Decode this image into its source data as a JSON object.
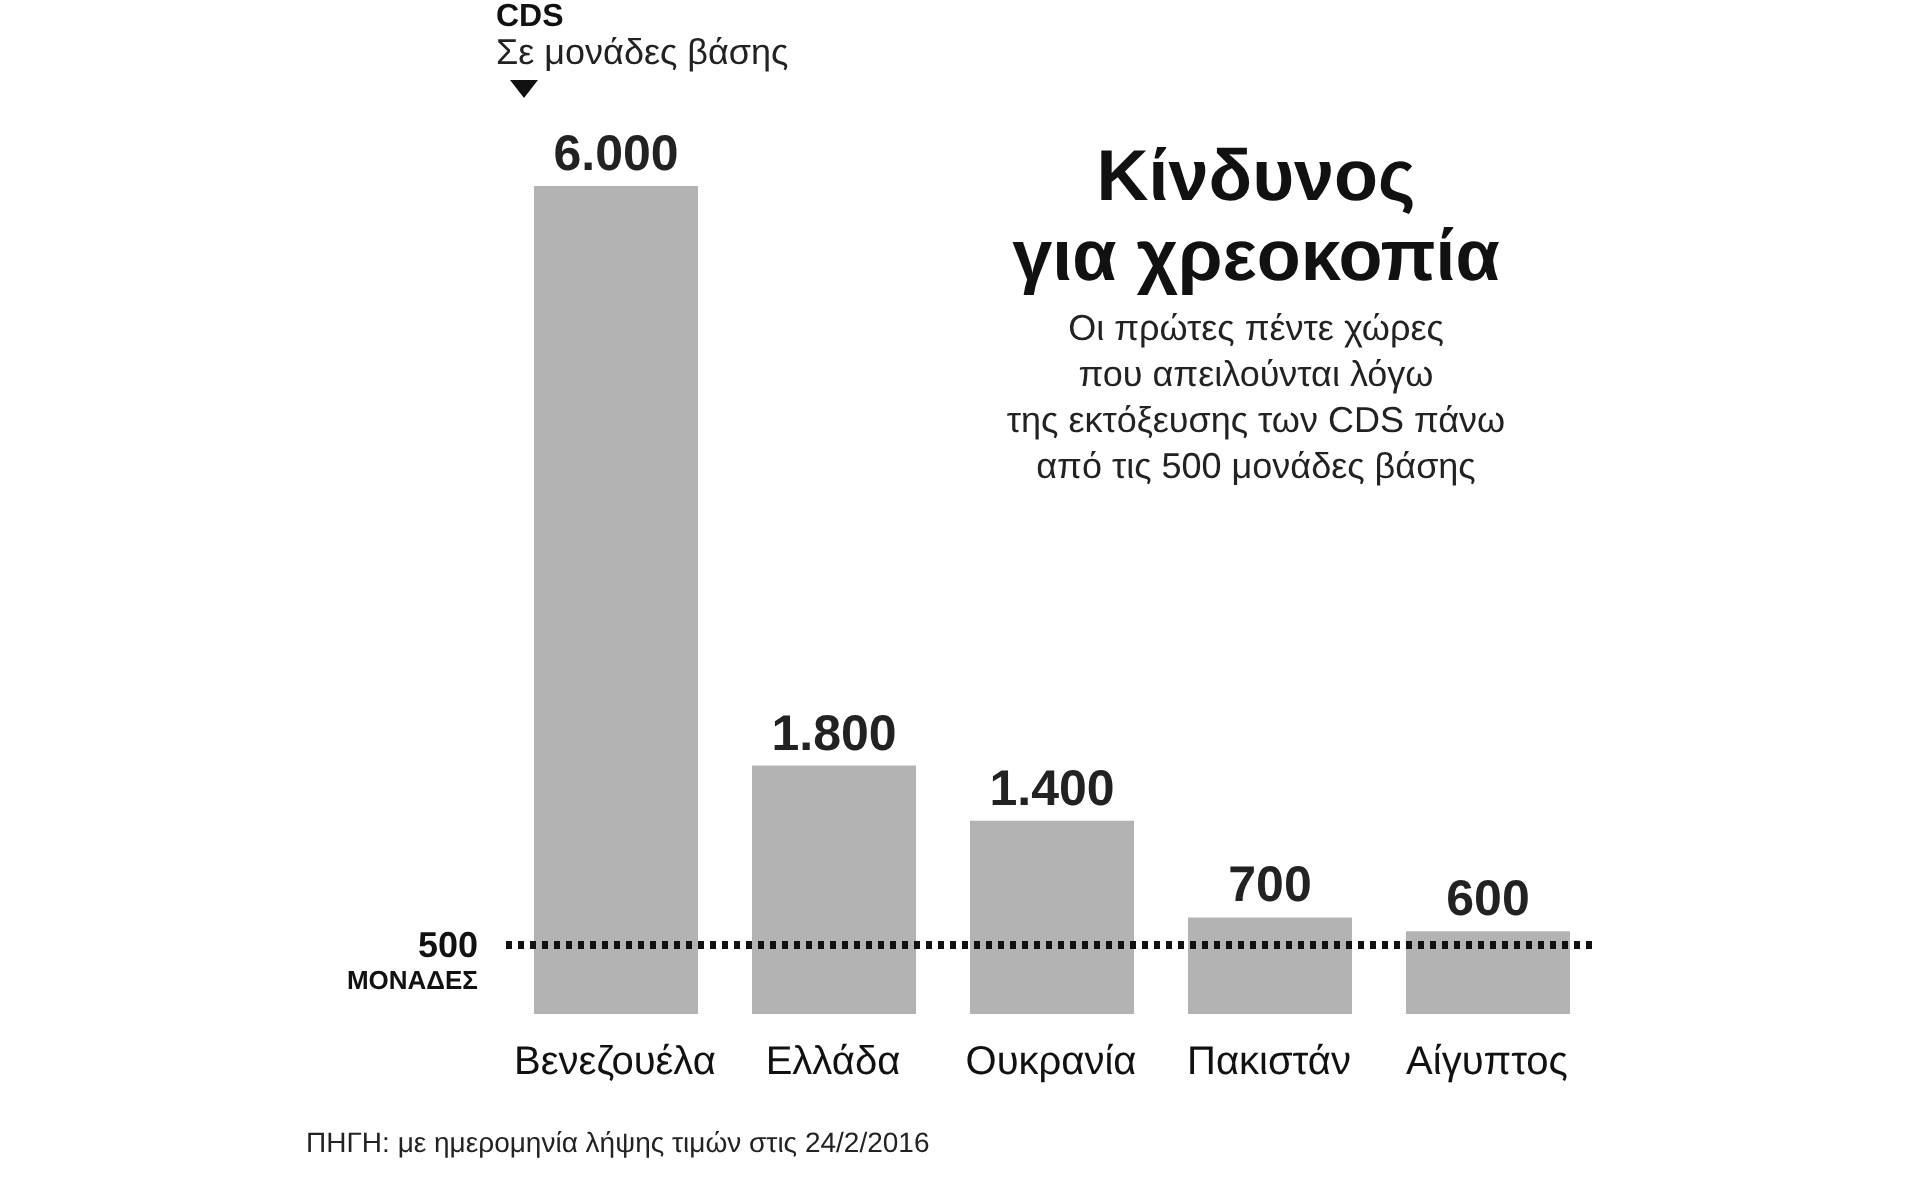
{
  "chart_data": {
    "type": "bar",
    "title": "Κίνδυνος\nγια χρεοκοπία",
    "subtitle": "Οι πρώτες πέντε χώρες\nπου απειλούνται λόγω\nτης εκτόξευσης των CDS πάνω\nαπό τις 500 μονάδες βάσης",
    "ylabel": "CDS",
    "annotations": [
      "Σε μονάδες βάσης",
      "ΠΗΓΗ: με ημερομηνία λήψης τιμών στις 24/2/2016"
    ],
    "categories": [
      "Βενεζουέλα",
      "Ελλάδα",
      "Ουκρανία",
      "Πακιστάν",
      "Αίγυπτος"
    ],
    "values": [
      6000,
      1800,
      1400,
      700,
      600
    ],
    "color": "#b3b3b3",
    "value_labels": [
      "6.000",
      "1.800",
      "1.400",
      "700",
      "600"
    ],
    "ref_lines": [
      {
        "axis": "y",
        "value": 500,
        "label": "500\nΜΟΝΑΔΕΣ",
        "color": "#111111",
        "line_style": "dotted"
      }
    ]
  }
}
